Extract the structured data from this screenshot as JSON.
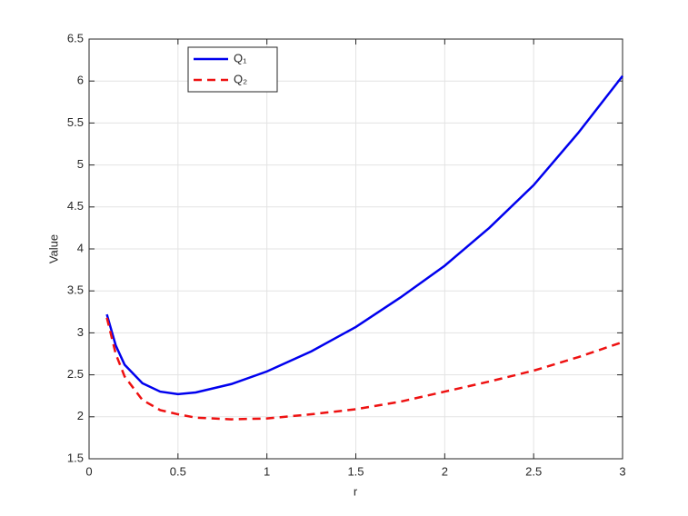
{
  "chart_data": {
    "type": "line",
    "xlabel": "r",
    "ylabel": "Value",
    "x": [
      0.1,
      0.15,
      0.2,
      0.3,
      0.4,
      0.5,
      0.6,
      0.8,
      1,
      1.25,
      1.5,
      1.75,
      2,
      2.25,
      2.5,
      2.75,
      3
    ],
    "series": [
      {
        "name": "Q₁",
        "color": "#0000ee",
        "linestyle": "solid",
        "values": [
          3.22,
          2.85,
          2.62,
          2.4,
          2.3,
          2.27,
          2.29,
          2.39,
          2.54,
          2.78,
          3.07,
          3.42,
          3.8,
          4.25,
          4.76,
          5.38,
          6.06
        ]
      },
      {
        "name": "Q₂",
        "color": "#ee1111",
        "linestyle": "dashed",
        "values": [
          3.18,
          2.75,
          2.48,
          2.2,
          2.08,
          2.03,
          1.99,
          1.97,
          1.98,
          2.03,
          2.09,
          2.18,
          2.3,
          2.42,
          2.55,
          2.71,
          2.89
        ]
      }
    ],
    "xlim": [
      0,
      3
    ],
    "xticks": [
      0,
      0.5,
      1,
      1.5,
      2,
      2.5,
      3
    ],
    "ylim": [
      1.5,
      6.5
    ],
    "yticks": [
      1.5,
      2,
      2.5,
      3,
      3.5,
      4,
      4.5,
      5,
      5.5,
      6,
      6.5
    ],
    "grid": true,
    "legend": "upper left"
  }
}
